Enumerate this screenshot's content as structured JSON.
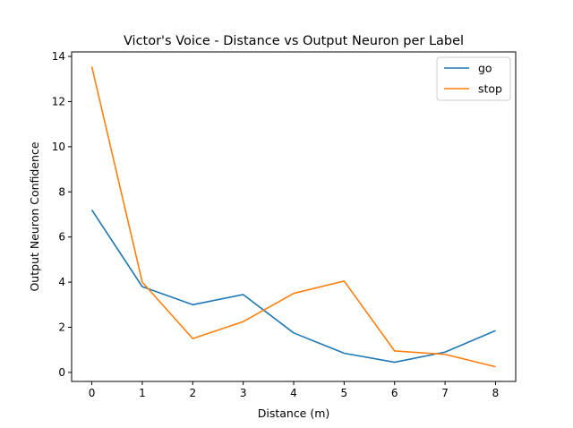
{
  "chart_data": {
    "type": "line",
    "title": "Victor's Voice - Distance vs Output Neuron per Label",
    "xlabel": "Distance (m)",
    "ylabel": "Output Neuron Confidence",
    "x": [
      0,
      1,
      2,
      3,
      4,
      5,
      6,
      7,
      8
    ],
    "xlim": [
      -0.4,
      8.4
    ],
    "ylim": [
      -0.4,
      14.2
    ],
    "xticks": [
      0,
      1,
      2,
      3,
      4,
      5,
      6,
      7,
      8
    ],
    "yticks": [
      0,
      2,
      4,
      6,
      8,
      10,
      12,
      14
    ],
    "grid": false,
    "legend_position": "top-right",
    "series": [
      {
        "name": "go",
        "color": "#1f77b4",
        "values": [
          7.2,
          3.8,
          3.0,
          3.45,
          1.75,
          0.85,
          0.45,
          0.9,
          1.85
        ]
      },
      {
        "name": "stop",
        "color": "#ff7f0e",
        "values": [
          13.55,
          4.0,
          1.5,
          2.25,
          3.5,
          4.05,
          0.95,
          0.8,
          0.25
        ]
      }
    ]
  }
}
